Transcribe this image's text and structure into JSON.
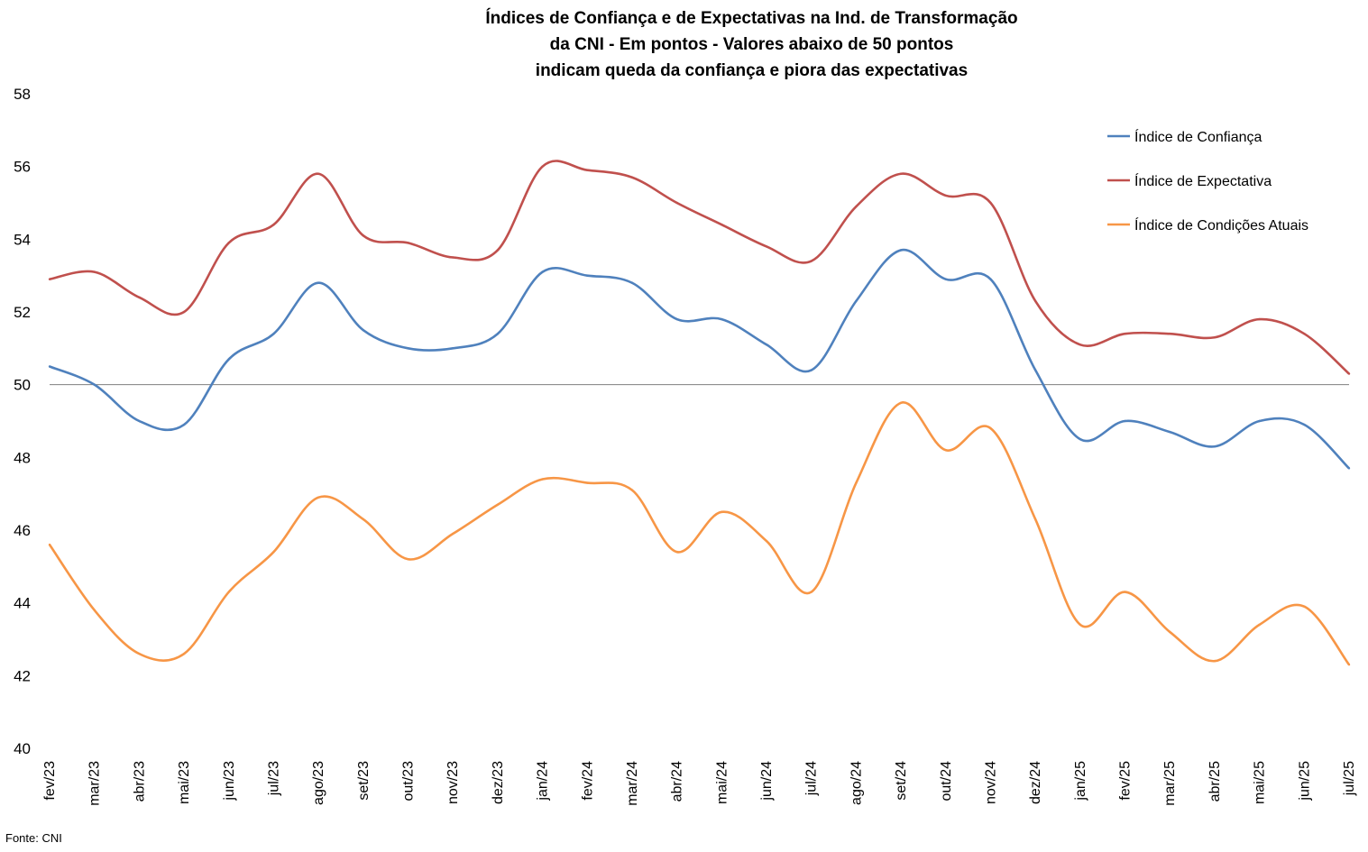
{
  "chart_data": {
    "type": "line",
    "title_lines": [
      "Índices de Confiança e de Expectativas na Ind. de Transformação",
      "da CNI - Em pontos - Valores abaixo de 50 pontos",
      "indicam queda da confiança e piora das expectativas"
    ],
    "categories": [
      "fev/23",
      "mar/23",
      "abr/23",
      "mai/23",
      "jun/23",
      "jul/23",
      "ago/23",
      "set/23",
      "out/23",
      "nov/23",
      "dez/23",
      "jan/24",
      "fev/24",
      "mar/24",
      "abr/24",
      "mai/24",
      "jun/24",
      "jul/24",
      "ago/24",
      "set/24",
      "out/24",
      "nov/24",
      "dez/24",
      "jan/25",
      "fev/25",
      "mar/25",
      "abr/25",
      "mai/25",
      "jun/25",
      "jul/25"
    ],
    "ylim": [
      40,
      58
    ],
    "yticks": [
      40,
      42,
      44,
      46,
      48,
      50,
      52,
      54,
      56,
      58
    ],
    "reference_line": 50,
    "legend_position": "top-right",
    "series": [
      {
        "name": "Índice de Confiança",
        "color": "#4f81bd",
        "values": [
          50.5,
          50.0,
          49.0,
          48.9,
          50.7,
          51.4,
          52.8,
          51.5,
          51.0,
          51.0,
          51.4,
          53.1,
          53.0,
          52.8,
          51.8,
          51.8,
          51.1,
          50.4,
          52.3,
          53.7,
          52.9,
          52.9,
          50.4,
          48.5,
          49.0,
          48.7,
          48.3,
          49.0,
          48.9,
          47.7
        ]
      },
      {
        "name": "Índice de Expectativa",
        "color": "#c0504d",
        "values": [
          52.9,
          53.1,
          52.4,
          52.0,
          53.9,
          54.4,
          55.8,
          54.1,
          53.9,
          53.5,
          53.7,
          56.0,
          55.9,
          55.7,
          55.0,
          54.4,
          53.8,
          53.4,
          54.9,
          55.8,
          55.2,
          55.0,
          52.3,
          51.1,
          51.4,
          51.4,
          51.3,
          51.8,
          51.4,
          50.3
        ]
      },
      {
        "name": "Índice de Condições Atuais",
        "color": "#f79646",
        "values": [
          45.6,
          43.8,
          42.6,
          42.6,
          44.3,
          45.4,
          46.9,
          46.3,
          45.2,
          45.9,
          46.7,
          47.4,
          47.3,
          47.1,
          45.4,
          46.5,
          45.7,
          44.3,
          47.3,
          49.5,
          48.2,
          48.8,
          46.3,
          43.4,
          44.3,
          43.2,
          42.4,
          43.4,
          43.9,
          42.3
        ]
      }
    ]
  },
  "source": "Fonte: CNI"
}
